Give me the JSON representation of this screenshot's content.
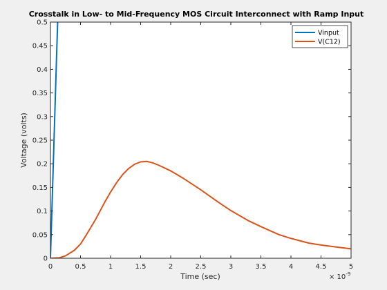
{
  "chart_data": {
    "type": "line",
    "title": "Crosstalk in Low- to Mid-Frequency MOS Circuit Interconnect with Ramp Input",
    "xlabel": "Time (sec)",
    "ylabel": "Voltage (volts)",
    "x_exponent_label": "× 10",
    "x_exponent_power": "-9",
    "xlim": [
      0,
      5
    ],
    "ylim": [
      0,
      0.5
    ],
    "x_ticks": [
      "0",
      "0.5",
      "1",
      "1.5",
      "2",
      "2.5",
      "3",
      "3.5",
      "4",
      "4.5",
      "5"
    ],
    "y_ticks": [
      "0",
      "0.05",
      "0.1",
      "0.15",
      "0.2",
      "0.25",
      "0.3",
      "0.35",
      "0.4",
      "0.45",
      "0.5"
    ],
    "legend_position": "top-right",
    "grid": false,
    "series": [
      {
        "name": "Vinput",
        "color": "#0072BD",
        "x": [
          0,
          0.1,
          0.12
        ],
        "y": [
          0,
          0.42,
          0.5
        ]
      },
      {
        "name": "V(C12)",
        "color": "#D95319",
        "x": [
          0,
          0.15,
          0.25,
          0.4,
          0.5,
          0.6,
          0.75,
          0.9,
          1.0,
          1.1,
          1.2,
          1.3,
          1.4,
          1.5,
          1.6,
          1.7,
          1.8,
          2.0,
          2.2,
          2.5,
          2.8,
          3.0,
          3.3,
          3.5,
          3.8,
          4.0,
          4.3,
          4.5,
          4.8,
          5.0
        ],
        "y": [
          0,
          0.001,
          0.005,
          0.017,
          0.03,
          0.05,
          0.082,
          0.118,
          0.14,
          0.16,
          0.177,
          0.19,
          0.199,
          0.204,
          0.205,
          0.202,
          0.197,
          0.185,
          0.17,
          0.145,
          0.118,
          0.101,
          0.079,
          0.067,
          0.05,
          0.042,
          0.032,
          0.028,
          0.023,
          0.02
        ]
      }
    ]
  }
}
